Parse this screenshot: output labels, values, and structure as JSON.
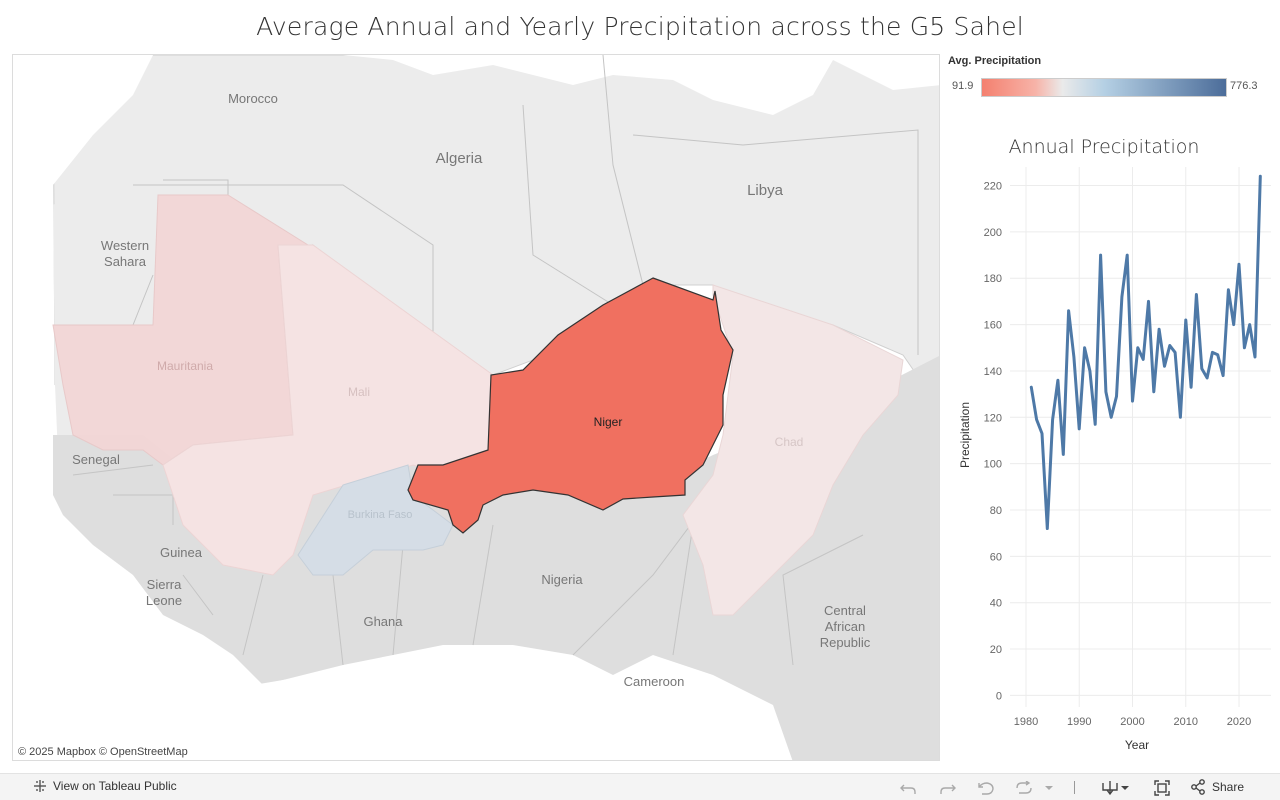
{
  "title": "Average Annual and Yearly Precipitation across the G5 Sahel",
  "map": {
    "labels": {
      "morocco": "Morocco",
      "algeria": "Algeria",
      "libya": "Libya",
      "western_sahara_1": "Western",
      "western_sahara_2": "Sahara",
      "mauritania": "Mauritania",
      "mali": "Mali",
      "niger": "Niger",
      "chad": "Chad",
      "burkina_faso": "Burkina Faso",
      "senegal": "Senegal",
      "guinea": "Guinea",
      "sierra_leone_1": "Sierra",
      "sierra_leone_2": "Leone",
      "ghana": "Ghana",
      "nigeria": "Nigeria",
      "cameroon": "Cameroon",
      "car_1": "Central",
      "car_2": "African",
      "car_3": "Republic"
    },
    "colors": {
      "land": "#ececec",
      "land_south": "#dedede",
      "border": "#bdbdbd",
      "niger": "#f07060",
      "mauritania": "#f3d6d6",
      "mali": "#f5e3e3",
      "chad": "#f3e6e6",
      "burkina_faso": "#d5dde6"
    },
    "credit": "© 2025 Mapbox  © OpenStreetMap"
  },
  "legend": {
    "title": "Avg. Precipitation",
    "min_label": "91.9",
    "max_label": "776.3",
    "color_low": "#f4806f",
    "color_mid": "#eaeaea",
    "color_mid2": "#b5d0e4",
    "color_high": "#4c6d9a"
  },
  "chart_data": {
    "type": "line",
    "title": "Annual Precipitation",
    "xlabel": "Year",
    "ylabel": "Precipitation",
    "x_ticks": [
      "1980",
      "1990",
      "2000",
      "2010",
      "2020"
    ],
    "y_ticks": [
      "0",
      "20",
      "40",
      "60",
      "80",
      "100",
      "120",
      "140",
      "160",
      "180",
      "200",
      "220"
    ],
    "xlim": [
      1977,
      2026
    ],
    "ylim": [
      -5,
      228
    ],
    "series": [
      {
        "color": "#4e79a7",
        "x": [
          1981,
          1982,
          1983,
          1984,
          1985,
          1986,
          1987,
          1988,
          1989,
          1990,
          1991,
          1992,
          1993,
          1994,
          1995,
          1996,
          1997,
          1998,
          1999,
          2000,
          2001,
          2002,
          2003,
          2004,
          2005,
          2006,
          2007,
          2008,
          2009,
          2010,
          2011,
          2012,
          2013,
          2014,
          2015,
          2016,
          2017,
          2018,
          2019,
          2020,
          2021,
          2022,
          2023,
          2024
        ],
        "values": [
          133,
          119,
          113,
          72,
          119,
          136,
          104,
          166,
          146,
          115,
          150,
          140,
          117,
          190,
          131,
          120,
          129,
          172,
          190,
          127,
          150,
          145,
          170,
          131,
          158,
          142,
          151,
          148,
          120,
          162,
          133,
          173,
          141,
          137,
          148,
          147,
          138,
          175,
          160,
          186,
          150,
          160,
          146,
          224
        ]
      }
    ]
  },
  "toolbar": {
    "view_label": "View on Tableau Public",
    "share_label": "Share"
  }
}
